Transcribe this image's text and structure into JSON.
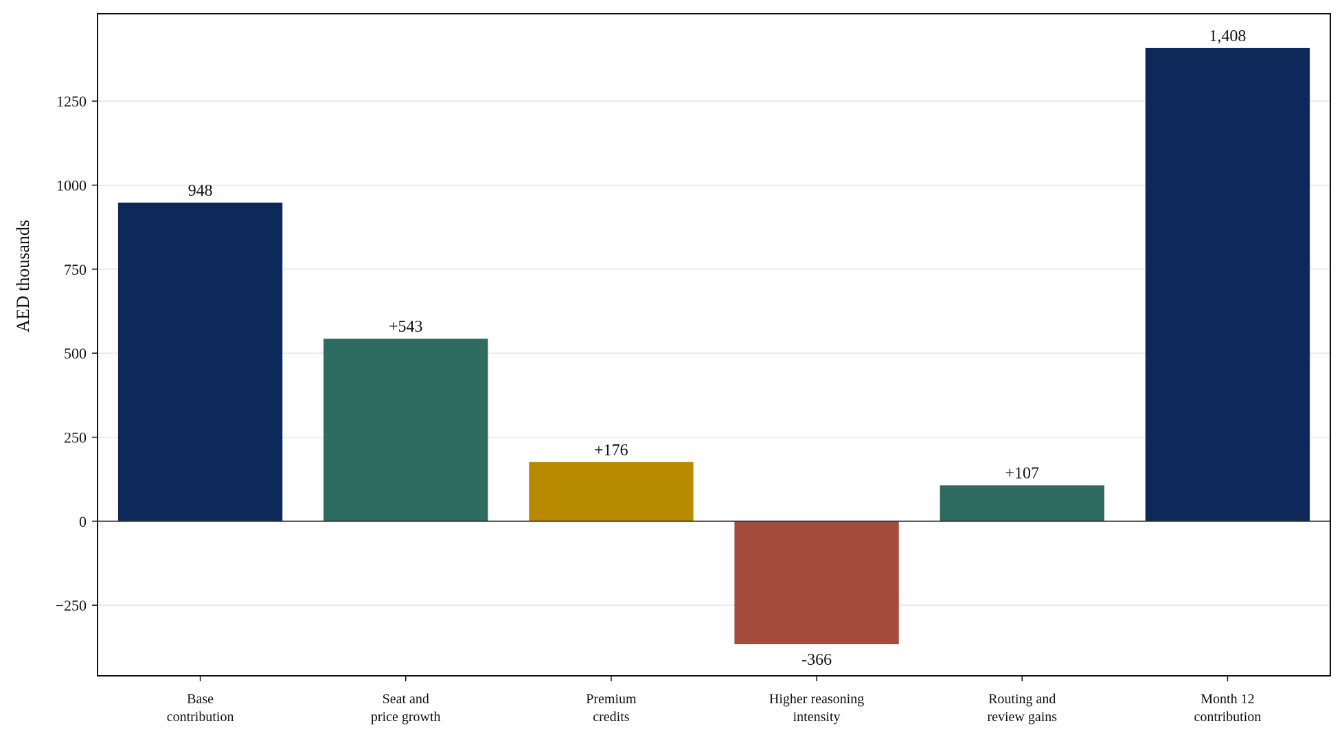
{
  "chart_data": {
    "type": "bar",
    "ylabel": "AED thousands",
    "xlabel": "",
    "title": "",
    "ylim": [
      -460,
      1510
    ],
    "yticks": [
      -250,
      0,
      250,
      500,
      750,
      1000,
      1250
    ],
    "ytick_labels": [
      "−250",
      "0",
      "250",
      "500",
      "750",
      "1000",
      "1250"
    ],
    "grid": "horizontal",
    "zero_line": true,
    "categories": [
      [
        "Base",
        "contribution"
      ],
      [
        "Seat and",
        "price growth"
      ],
      [
        "Premium",
        "credits"
      ],
      [
        "Higher reasoning",
        "intensity"
      ],
      [
        "Routing and",
        "review gains"
      ],
      [
        "Month 12",
        "contribution"
      ]
    ],
    "values": [
      948,
      543,
      176,
      -366,
      107,
      1408
    ],
    "data_labels": [
      "948",
      "+543",
      "+176",
      "-366",
      "+107",
      "1,408"
    ],
    "colors": [
      "#0c2959",
      "#2e6b60",
      "#b88a00",
      "#a54b3d",
      "#2e6b60",
      "#0c2959"
    ]
  }
}
